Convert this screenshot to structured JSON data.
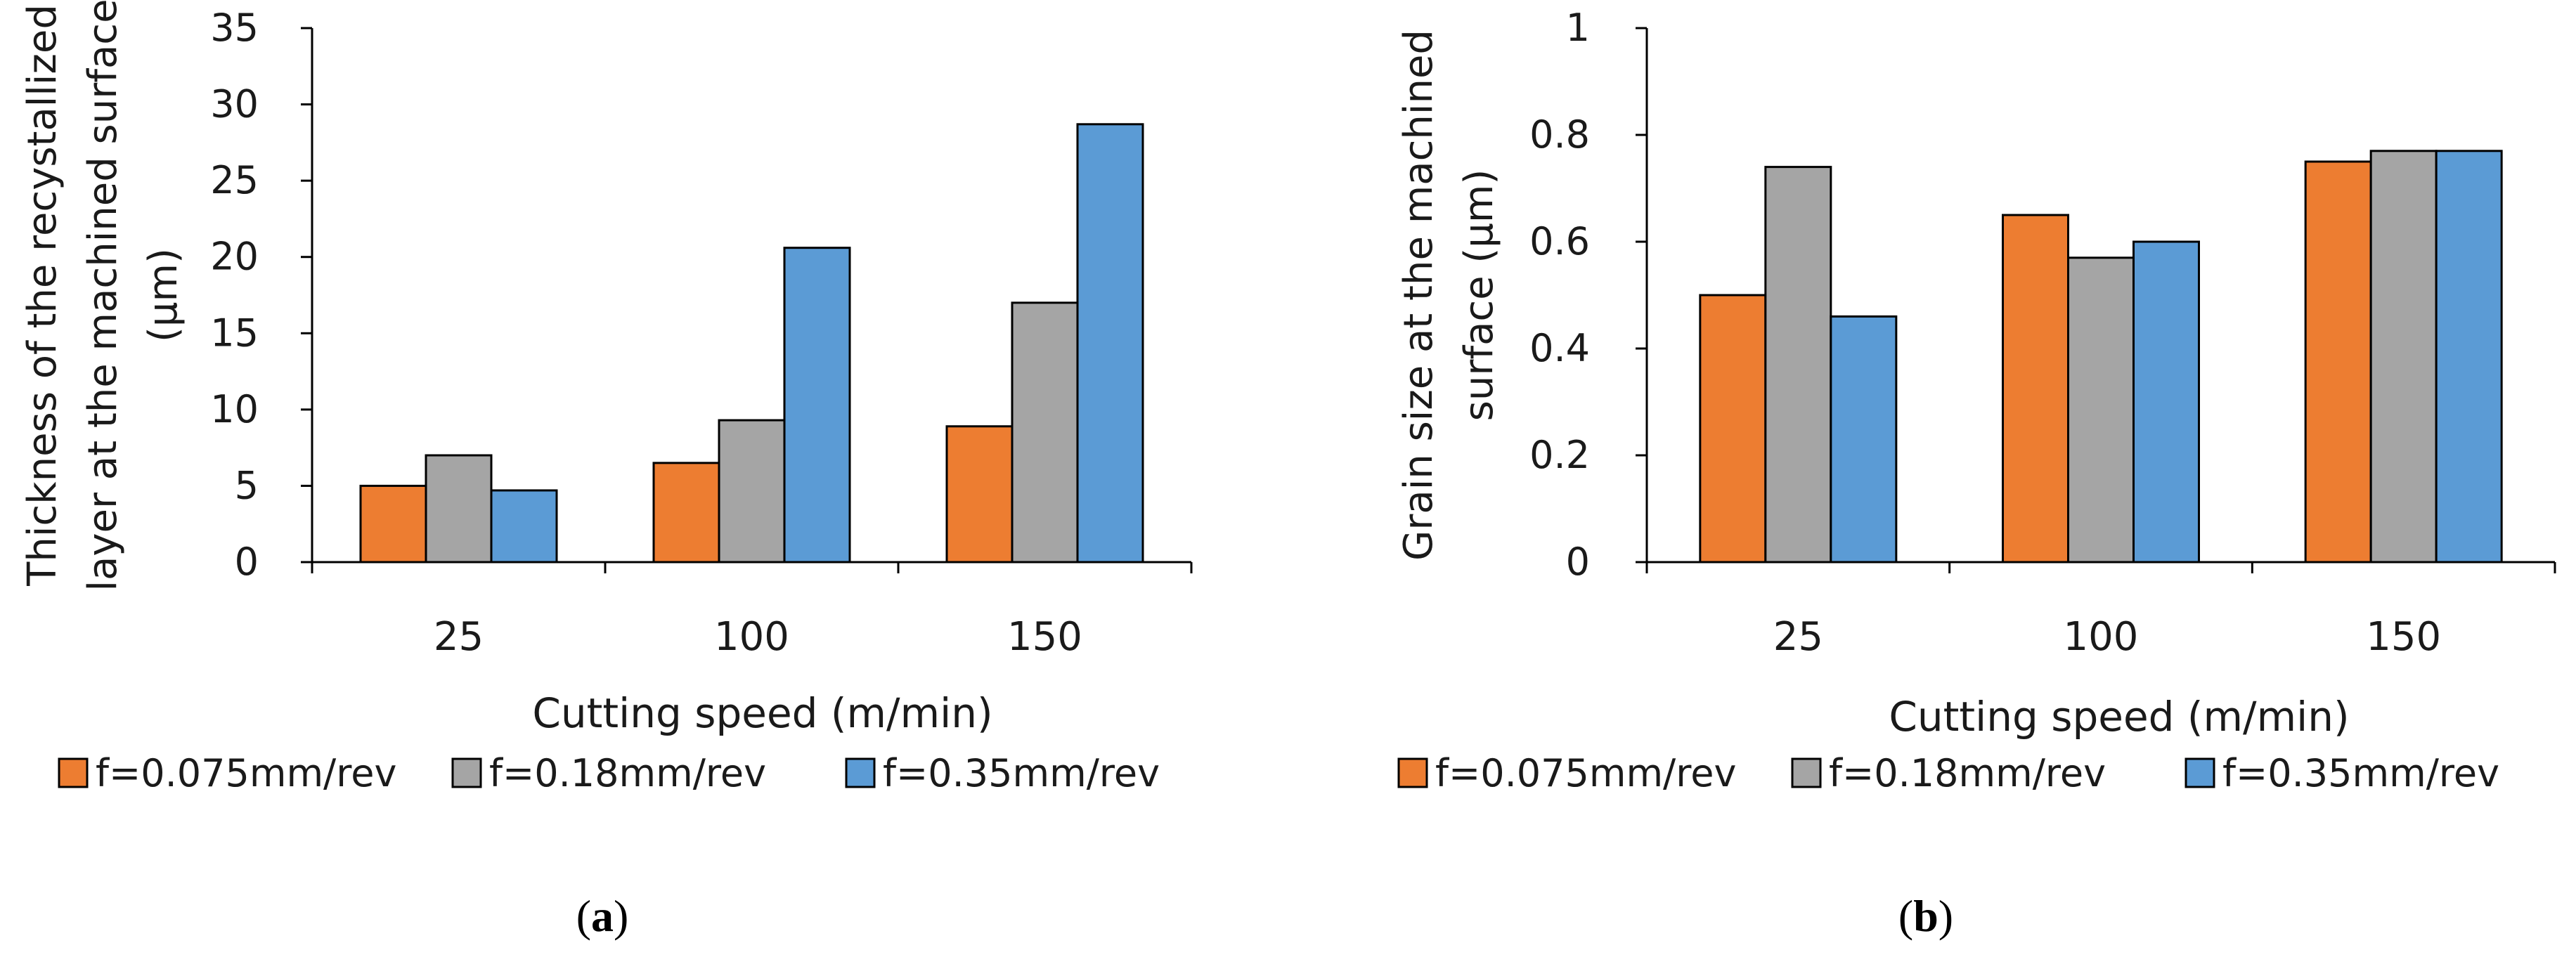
{
  "chart_data": [
    {
      "type": "bar",
      "panel_label": "a",
      "title": "",
      "xlabel": "Cutting speed (m/min)",
      "ylabel": [
        "Thickness of the recystallized",
        "layer at the machined surface",
        "(μm)"
      ],
      "categories": [
        "25",
        "100",
        "150"
      ],
      "ylim": [
        0,
        35
      ],
      "yticks": [
        "0",
        "5",
        "10",
        "15",
        "20",
        "25",
        "30",
        "35"
      ],
      "grid": false,
      "legend_position": "bottom",
      "series": [
        {
          "name": "f=0.075mm/rev",
          "color": "#ED7D31",
          "values": [
            5.0,
            6.5,
            8.9
          ]
        },
        {
          "name": "f=0.18mm/rev",
          "color": "#A5A5A5",
          "values": [
            7.0,
            9.3,
            17.0
          ]
        },
        {
          "name": "f=0.35mm/rev",
          "color": "#5B9BD5",
          "values": [
            4.7,
            20.6,
            28.7
          ]
        }
      ]
    },
    {
      "type": "bar",
      "panel_label": "b",
      "title": "",
      "xlabel": "Cutting speed (m/min)",
      "ylabel": [
        "Grain size at the machined",
        "surface (μm)"
      ],
      "categories": [
        "25",
        "100",
        "150"
      ],
      "ylim": [
        0,
        1
      ],
      "yticks": [
        "0",
        "0.2",
        "0.4",
        "0.6",
        "0.8",
        "1"
      ],
      "grid": false,
      "legend_position": "bottom",
      "series": [
        {
          "name": "f=0.075mm/rev",
          "color": "#ED7D31",
          "values": [
            0.5,
            0.65,
            0.75
          ]
        },
        {
          "name": "f=0.18mm/rev",
          "color": "#A5A5A5",
          "values": [
            0.74,
            0.57,
            0.77
          ]
        },
        {
          "name": "f=0.35mm/rev",
          "color": "#5B9BD5",
          "values": [
            0.46,
            0.6,
            0.77
          ]
        }
      ]
    }
  ]
}
